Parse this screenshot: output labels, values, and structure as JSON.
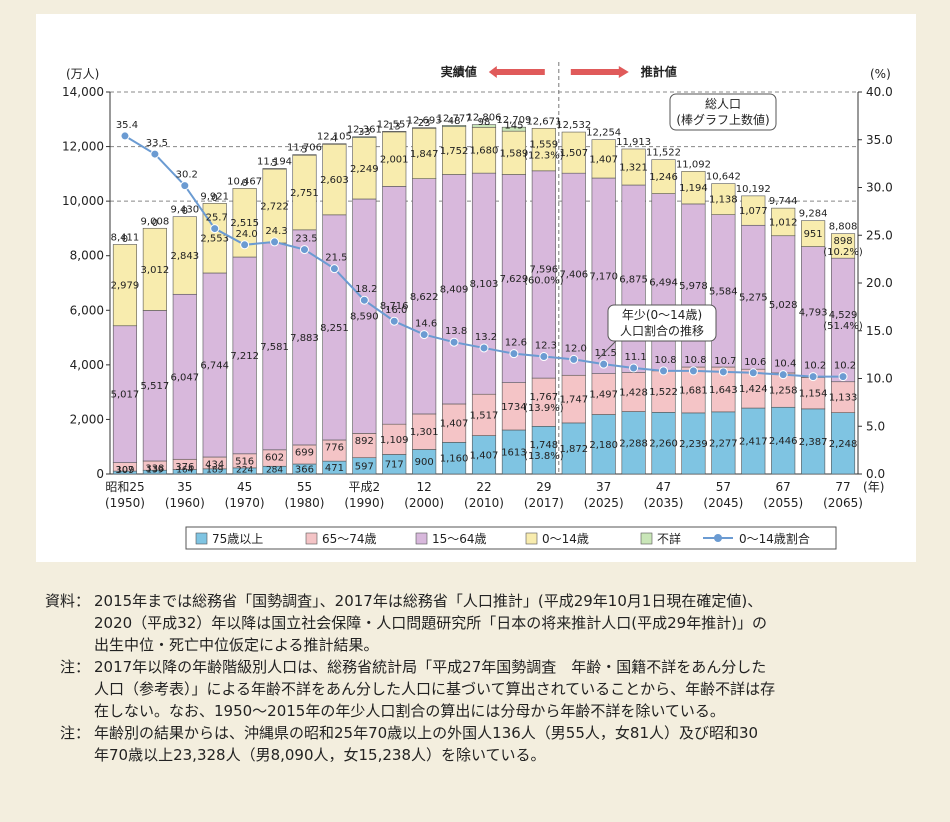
{
  "chart_data": {
    "type": "bar",
    "stacked": true,
    "categories": [
      "昭和25\n(1950)",
      "",
      "35\n(1960)",
      "",
      "45\n(1970)",
      "",
      "55\n(1980)",
      "",
      "平成2\n(1990)",
      "",
      "12\n(2000)",
      "",
      "22\n(2010)",
      "",
      "29\n(2017)",
      "",
      "37\n(2025)",
      "",
      "47\n(2035)",
      "",
      "57\n(2045)",
      "",
      "67\n(2055)",
      "",
      "77\n(2065)"
    ],
    "x_tick_top": [
      "昭和25",
      "35",
      "45",
      "55",
      "平成2",
      "12",
      "22",
      "29",
      "37",
      "47",
      "57",
      "67",
      "77"
    ],
    "x_tick_bottom": [
      "(1950)",
      "(1960)",
      "(1970)",
      "(1980)",
      "(1990)",
      "(2000)",
      "(2010)",
      "(2017)",
      "(2025)",
      "(2035)",
      "(2045)",
      "(2055)",
      "(2065)"
    ],
    "x_unit": "(年)",
    "y_left_unit": "(万人)",
    "y_right_unit": "(%)",
    "y_left_ticks": [
      "0",
      "2,000",
      "4,000",
      "6,000",
      "8,000",
      "10,000",
      "12,000",
      "14,000"
    ],
    "y_right_ticks": [
      "0.0",
      "5.0",
      "10.0",
      "15.0",
      "20.0",
      "25.0",
      "30.0",
      "35.0",
      "40.0"
    ],
    "ylim_left": [
      0,
      14000
    ],
    "ylim_right": [
      0,
      40
    ],
    "grid": "dashed at 10,000 / 12,000 / 14,000",
    "series": [
      {
        "name": "75歳以上",
        "color": "#7fc4e2",
        "values": [
          107,
          139,
          164,
          189,
          224,
          284,
          366,
          471,
          597,
          717,
          900,
          1160,
          1407,
          1613,
          1748,
          1872,
          2180,
          2288,
          2260,
          2239,
          2277,
          2417,
          2446,
          2387,
          2248
        ],
        "labels": [
          "107",
          "139",
          "164",
          "189",
          "224",
          "284",
          "366",
          "471",
          "597",
          "717",
          "900",
          "1,160",
          "1,407",
          "1613",
          "1,748\n(13.8%)",
          "1,872",
          "2,180",
          "2,288",
          "2,260",
          "2,239",
          "2,277",
          "2,417",
          "2,446",
          "2,387",
          "2,248"
        ]
      },
      {
        "name": "65～74歳",
        "color": "#f4c4c6",
        "values": [
          309,
          338,
          376,
          434,
          516,
          602,
          699,
          776,
          892,
          1109,
          1301,
          1407,
          1517,
          1734,
          1767,
          1747,
          1497,
          1428,
          1522,
          1681,
          1643,
          1424,
          1258,
          1154,
          1133
        ],
        "labels": [
          "309",
          "338",
          "376",
          "434",
          "516",
          "602",
          "699",
          "776",
          "892",
          "1,109",
          "1,301",
          "1,407",
          "1,517",
          "1734",
          "1,767\n(13.9%)",
          "1,747",
          "1,497",
          "1,428",
          "1,522",
          "1,681",
          "1,643",
          "1,424",
          "1,258",
          "1,154",
          "1,133"
        ]
      },
      {
        "name": "15～64歳",
        "color": "#d8b8dc",
        "values": [
          5017,
          5517,
          6047,
          6744,
          7212,
          7581,
          7883,
          8251,
          8590,
          8716,
          8622,
          8409,
          8103,
          7629,
          7596,
          7406,
          7170,
          6875,
          6494,
          5978,
          5584,
          5275,
          5028,
          4793,
          4529
        ],
        "labels": [
          "5,017",
          "5,517",
          "6,047",
          "6,744",
          "7,212",
          "7,581",
          "7,883",
          "8,251",
          "8,590",
          "8,716",
          "8,622",
          "8,409",
          "8,103",
          "7,629",
          "7,596\n(60.0%)",
          "7,406",
          "7,170",
          "6,875",
          "6,494",
          "5,978",
          "5,584",
          "5,275",
          "5,028",
          "4,793",
          "4,529\n(51.4%)"
        ]
      },
      {
        "name": "0～14歳",
        "color": "#f8ecae",
        "values": [
          2979,
          3012,
          2843,
          2553,
          2515,
          2722,
          2751,
          2603,
          2249,
          2001,
          1847,
          1752,
          1680,
          1589,
          1559,
          1507,
          1407,
          1321,
          1246,
          1194,
          1138,
          1077,
          1012,
          951,
          898
        ],
        "labels": [
          "2,979",
          "3,012",
          "2,843",
          "2,553",
          "2,515",
          "2,722",
          "2,751",
          "2,603",
          "2,249",
          "2,001",
          "1,847",
          "1,752",
          "1,680",
          "1,589",
          "1,559\n(12.3%)",
          "1,507",
          "1,407",
          "1,321",
          "1,246",
          "1,194",
          "1,138",
          "1,077",
          "1,012",
          "951",
          "898\n(10.2%)"
        ]
      },
      {
        "name": "不詳",
        "color": "#c9e6b8",
        "values": [
          0,
          0,
          0,
          0,
          0,
          5,
          5,
          4,
          33,
          13,
          23,
          48,
          98,
          145,
          0,
          0,
          0,
          0,
          0,
          0,
          0,
          0,
          0,
          0,
          0
        ],
        "labels": [
          "0",
          "0",
          "0",
          "0",
          "0",
          "5",
          "5",
          "4",
          "33",
          "13",
          "23",
          "48",
          "98",
          "145",
          "",
          "",
          "",
          "",
          "",
          "",
          "",
          "",
          "",
          "",
          ""
        ]
      }
    ],
    "totals": [
      "8,411",
      "9,008",
      "9,430",
      "9,921",
      "10,467",
      "11,194",
      "11,706",
      "12,105",
      "12,361",
      "12,557",
      "12,693",
      "12,777",
      "12,806",
      "12,709",
      "12,671",
      "12,532",
      "12,254",
      "11,913",
      "11,522",
      "11,092",
      "10,642",
      "10,192",
      "9,744",
      "9,284",
      "8,808"
    ],
    "ratio_series": {
      "name": "0～14歳割合",
      "color": "#6b9bd2",
      "values": [
        35.4,
        33.5,
        30.2,
        25.7,
        24.0,
        24.3,
        23.5,
        21.5,
        18.2,
        16.0,
        14.6,
        13.8,
        13.2,
        12.6,
        12.3,
        12.0,
        11.5,
        11.1,
        10.8,
        10.8,
        10.7,
        10.6,
        10.4,
        10.2,
        10.2
      ],
      "labels": [
        "35.4",
        "33.5",
        "30.2",
        "25.7",
        "24.0",
        "24.3",
        "23.5",
        "21.5",
        "18.2",
        "16.0",
        "14.6",
        "13.8",
        "13.2",
        "12.6",
        "12.3",
        "12.0",
        "11.5",
        "11.1",
        "10.8",
        "10.8",
        "10.7",
        "10.6",
        "10.4",
        "10.2",
        "10.2"
      ]
    },
    "annotations": {
      "actual": "実績値",
      "projection": "推計値",
      "total_box": [
        "総人口",
        "(棒グラフ上数値)"
      ],
      "ratio_box": [
        "年少(0～14歳)",
        "人口割合の推移"
      ],
      "actual_color": "#e05a5a"
    },
    "legend_placement": "bottom"
  },
  "notes": [
    {
      "label": "資料：",
      "lines": [
        "2015年までは総務省「国勢調査」、2017年は総務省「人口推計」(平成29年10月1日現在確定値)、",
        "2020（平成32）年以降は国立社会保障・人口問題研究所「日本の将来推計人口(平成29年推計)」の",
        "出生中位・死亡中位仮定による推計結果。"
      ]
    },
    {
      "label": "注：",
      "lines": [
        "2017年以降の年齢階級別人口は、総務省統計局「平成27年国勢調査　年齢・国籍不詳をあん分した",
        "人口（参考表）」による年齢不詳をあん分した人口に基づいて算出されていることから、年齢不詳は存",
        "在しない。なお、1950～2015年の年少人口割合の算出には分母から年齢不詳を除いている。"
      ]
    },
    {
      "label": "注：",
      "lines": [
        "年齢別の結果からは、沖縄県の昭和25年70歳以上の外国人136人（男55人，女81人）及び昭和30",
        "年70歳以上23,328人（男8,090人，女15,238人）を除いている。"
      ]
    }
  ]
}
